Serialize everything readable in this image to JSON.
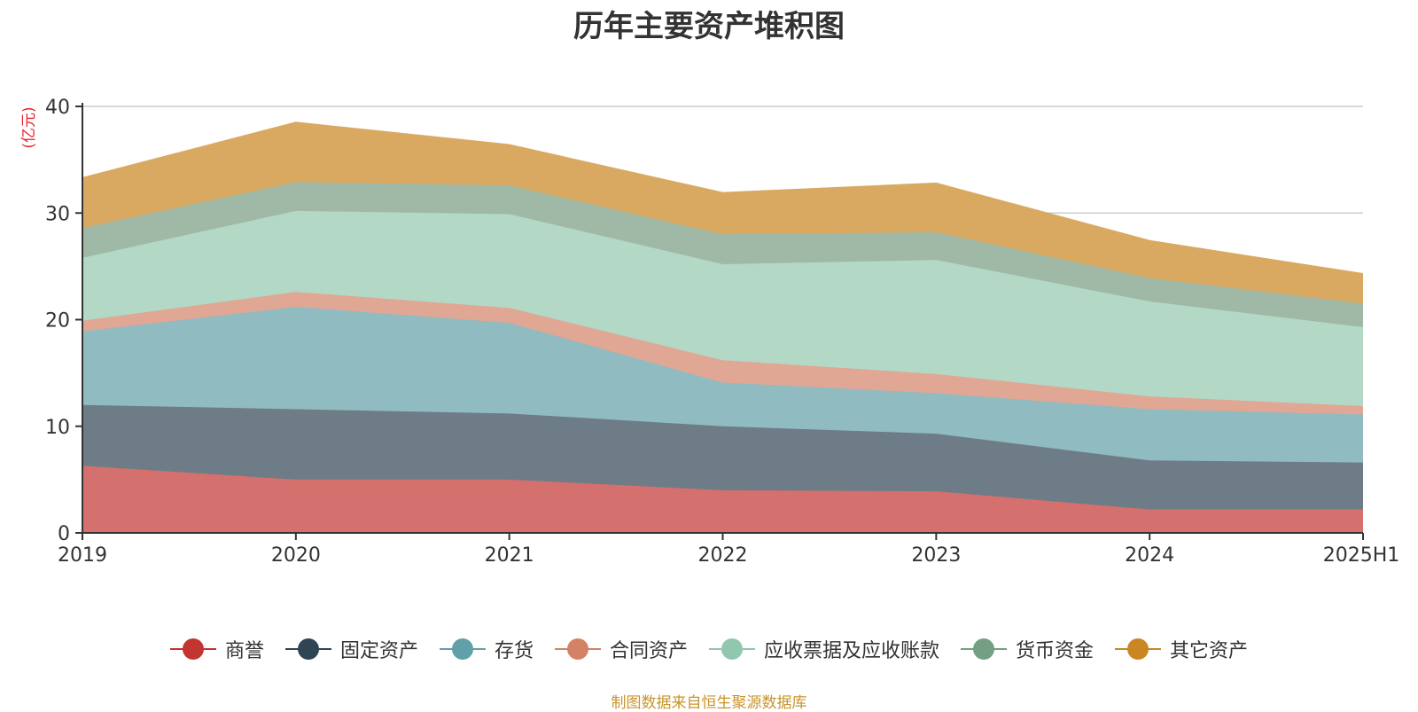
{
  "chart_data": {
    "type": "area",
    "title": "历年主要资产堆积图",
    "unit_label": "(亿元)",
    "x": [
      "2019",
      "2020",
      "2021",
      "2022",
      "2023",
      "2024",
      "2025H1"
    ],
    "y_ticks": [
      "0",
      "10",
      "20",
      "30",
      "40"
    ],
    "ylim": [
      0,
      40
    ],
    "grid": true,
    "legend_position": "bottom",
    "stacked": true,
    "series": [
      {
        "name": "商誉",
        "color": "#c23531",
        "fill": "#d4706d",
        "values": [
          6.3,
          5.0,
          5.0,
          4.0,
          3.9,
          2.2,
          2.2
        ]
      },
      {
        "name": "固定资产",
        "color": "#2f4554",
        "fill": "#6e7c87",
        "values": [
          5.7,
          6.6,
          6.2,
          6.0,
          5.4,
          4.6,
          4.4
        ]
      },
      {
        "name": "存货",
        "color": "#61a0a8",
        "fill": "#90bbc1",
        "values": [
          6.9,
          9.6,
          8.5,
          4.1,
          3.8,
          4.8,
          4.5
        ]
      },
      {
        "name": "合同资产",
        "color": "#d48265",
        "fill": "#e0a794",
        "values": [
          1.0,
          1.4,
          1.4,
          2.1,
          1.8,
          1.2,
          0.8
        ]
      },
      {
        "name": "应收票据及应收账款",
        "color": "#91c7ae",
        "fill": "#b3d8c6",
        "values": [
          5.9,
          7.6,
          8.8,
          9.0,
          10.7,
          8.9,
          7.4
        ]
      },
      {
        "name": "货币资金",
        "color": "#749f83",
        "fill": "#9fb9a6",
        "values": [
          2.8,
          2.7,
          2.7,
          2.8,
          2.6,
          2.2,
          2.2
        ]
      },
      {
        "name": "其它资产",
        "color": "#ca8622",
        "fill": "#d9a961",
        "values": [
          4.7,
          5.6,
          3.8,
          3.9,
          4.6,
          3.5,
          2.8
        ]
      }
    ]
  },
  "footer": {
    "source": "制图数据来自恒生聚源数据库"
  }
}
